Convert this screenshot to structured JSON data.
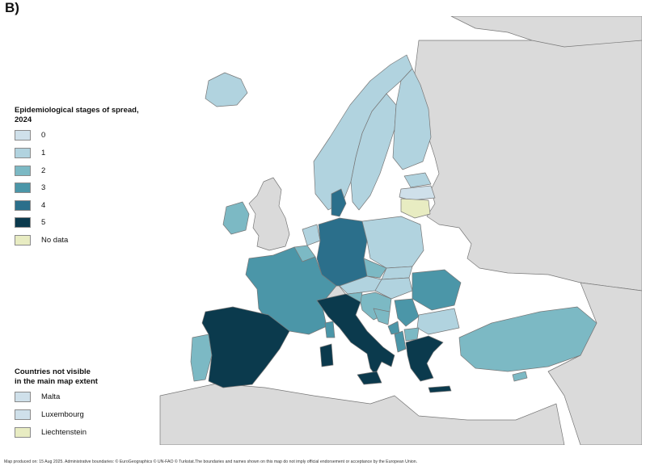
{
  "panel_label": "B)",
  "legend": {
    "title_line1": "Epidemiological stages of spread,",
    "title_line2": "2024",
    "items": [
      {
        "label": "0",
        "color": "#cfe0ea"
      },
      {
        "label": "1",
        "color": "#b1d3df"
      },
      {
        "label": "2",
        "color": "#7cb9c4"
      },
      {
        "label": "3",
        "color": "#4b96a8"
      },
      {
        "label": "4",
        "color": "#2b6f8b"
      },
      {
        "label": "5",
        "color": "#0b3a4d"
      },
      {
        "label": "No data",
        "color": "#e8ecc2"
      }
    ]
  },
  "not_visible": {
    "title_line1": "Countries not visible",
    "title_line2": "in the main map extent",
    "items": [
      {
        "label": "Malta",
        "color": "#cfe0ea"
      },
      {
        "label": "Luxembourg",
        "color": "#cfe0ea"
      },
      {
        "label": "Liechtenstein",
        "color": "#e8ecc2"
      }
    ]
  },
  "map": {
    "colors": {
      "sea": "#ffffff",
      "non_member": "#dadada",
      "border": "#777777"
    },
    "countries": [
      {
        "name": "Iceland",
        "stage": "1"
      },
      {
        "name": "Ireland",
        "stage": "2"
      },
      {
        "name": "Norway",
        "stage": "1"
      },
      {
        "name": "Sweden",
        "stage": "1"
      },
      {
        "name": "Finland",
        "stage": "1"
      },
      {
        "name": "Estonia",
        "stage": "1"
      },
      {
        "name": "Latvia",
        "stage": "0"
      },
      {
        "name": "Lithuania",
        "stage": "No data"
      },
      {
        "name": "Denmark",
        "stage": "4"
      },
      {
        "name": "Netherlands",
        "stage": "1"
      },
      {
        "name": "Belgium",
        "stage": "2"
      },
      {
        "name": "Germany",
        "stage": "4"
      },
      {
        "name": "Poland",
        "stage": "1"
      },
      {
        "name": "Czechia",
        "stage": "2"
      },
      {
        "name": "Slovakia",
        "stage": "1"
      },
      {
        "name": "Austria",
        "stage": "1"
      },
      {
        "name": "Switzerland",
        "stage": "non-member"
      },
      {
        "name": "Hungary",
        "stage": "1"
      },
      {
        "name": "Romania",
        "stage": "3"
      },
      {
        "name": "Bulgaria",
        "stage": "1"
      },
      {
        "name": "Slovenia",
        "stage": "2"
      },
      {
        "name": "Croatia",
        "stage": "2"
      },
      {
        "name": "Serbia",
        "stage": "3"
      },
      {
        "name": "Bosnia and Herzegovina",
        "stage": "2"
      },
      {
        "name": "Montenegro",
        "stage": "3"
      },
      {
        "name": "Albania",
        "stage": "3"
      },
      {
        "name": "North Macedonia",
        "stage": "2"
      },
      {
        "name": "Greece",
        "stage": "5"
      },
      {
        "name": "Türkiye",
        "stage": "2"
      },
      {
        "name": "Cyprus",
        "stage": "2"
      },
      {
        "name": "France",
        "stage": "3"
      },
      {
        "name": "Spain",
        "stage": "5"
      },
      {
        "name": "Portugal",
        "stage": "2"
      },
      {
        "name": "Italy",
        "stage": "5"
      },
      {
        "name": "Sardinia",
        "stage": "5"
      },
      {
        "name": "Corsica",
        "stage": "3"
      },
      {
        "name": "Sicily",
        "stage": "5"
      }
    ]
  },
  "credit": "Map produced on: 15 Aug 2025. Administrative boundaries: © EuroGeographics © UN-FAO © Turkstat.The boundaries and names shown on this map do not imply official endorsement or acceptance by the European Union."
}
